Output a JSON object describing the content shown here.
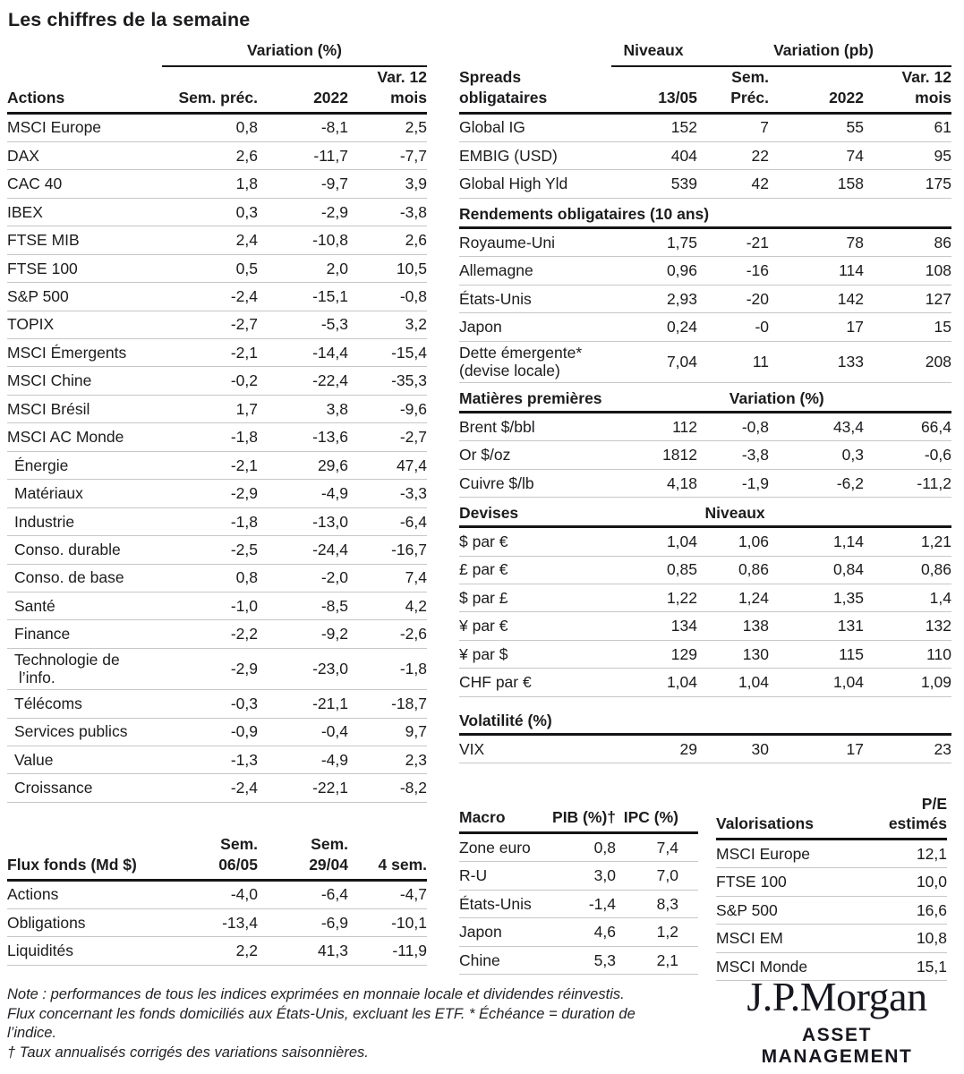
{
  "title": "Les chiffres de la semaine",
  "colors": {
    "text": "#1c1c1e",
    "rule": "#151517",
    "separator": "#c7c7c9",
    "background": "#ffffff"
  },
  "actions": {
    "group_label": "Variation (%)",
    "name_col": "Actions",
    "cols": [
      "Sem. préc.",
      "2022",
      "Var. 12\nmois"
    ],
    "rows": [
      {
        "label": "MSCI Europe",
        "c1": "0,8",
        "c2": "-8,1",
        "c3": "2,5"
      },
      {
        "label": "DAX",
        "c1": "2,6",
        "c2": "-11,7",
        "c3": "-7,7"
      },
      {
        "label": "CAC 40",
        "c1": "1,8",
        "c2": "-9,7",
        "c3": "3,9"
      },
      {
        "label": "IBEX",
        "c1": "0,3",
        "c2": "-2,9",
        "c3": "-3,8"
      },
      {
        "label": "FTSE MIB",
        "c1": "2,4",
        "c2": "-10,8",
        "c3": "2,6"
      },
      {
        "label": "FTSE 100",
        "c1": "0,5",
        "c2": "2,0",
        "c3": "10,5"
      },
      {
        "label": "S&P 500",
        "c1": "-2,4",
        "c2": "-15,1",
        "c3": "-0,8"
      },
      {
        "label": "TOPIX",
        "c1": "-2,7",
        "c2": "-5,3",
        "c3": "3,2"
      },
      {
        "label": "MSCI Émergents",
        "c1": "-2,1",
        "c2": "-14,4",
        "c3": "-15,4"
      },
      {
        "label": "MSCI Chine",
        "c1": "-0,2",
        "c2": "-22,4",
        "c3": "-35,3"
      },
      {
        "label": "MSCI Brésil",
        "c1": "1,7",
        "c2": "3,8",
        "c3": "-9,6"
      },
      {
        "label": "MSCI AC Monde",
        "c1": "-1,8",
        "c2": "-13,6",
        "c3": "-2,7"
      },
      {
        "label": "Énergie",
        "indent": true,
        "c1": "-2,1",
        "c2": "29,6",
        "c3": "47,4"
      },
      {
        "label": "Matériaux",
        "indent": true,
        "c1": "-2,9",
        "c2": "-4,9",
        "c3": "-3,3"
      },
      {
        "label": "Industrie",
        "indent": true,
        "c1": "-1,8",
        "c2": "-13,0",
        "c3": "-6,4"
      },
      {
        "label": "Conso. durable",
        "indent": true,
        "c1": "-2,5",
        "c2": "-24,4",
        "c3": "-16,7"
      },
      {
        "label": "Conso. de base",
        "indent": true,
        "c1": "0,8",
        "c2": "-2,0",
        "c3": "7,4"
      },
      {
        "label": "Santé",
        "indent": true,
        "c1": "-1,0",
        "c2": "-8,5",
        "c3": "4,2"
      },
      {
        "label": "Finance",
        "indent": true,
        "c1": "-2,2",
        "c2": "-9,2",
        "c3": "-2,6"
      },
      {
        "label": "Technologie de\n l’info.",
        "indent": true,
        "c1": "-2,9",
        "c2": "-23,0",
        "c3": "-1,8"
      },
      {
        "label": "Télécoms",
        "indent": true,
        "c1": "-0,3",
        "c2": "-21,1",
        "c3": "-18,7"
      },
      {
        "label": "Services publics",
        "indent": true,
        "c1": "-0,9",
        "c2": "-0,4",
        "c3": "9,7"
      },
      {
        "label": "Value",
        "indent": true,
        "c1": "-1,3",
        "c2": "-4,9",
        "c3": "2,3"
      },
      {
        "label": "Croissance",
        "indent": true,
        "c1": "-2,4",
        "c2": "-22,1",
        "c3": "-8,2"
      }
    ]
  },
  "spreads": {
    "group_niveaux": "Niveaux",
    "group_variation": "Variation (pb)",
    "name_col": "Spreads\nobligataires",
    "cols": [
      "13/05",
      "Sem.\nPréc.",
      "2022",
      "Var. 12\nmois"
    ],
    "rows": [
      {
        "label": "Global IG",
        "c1": "152",
        "c2": "7",
        "c3": "55",
        "c4": "61"
      },
      {
        "label": "EMBIG (USD)",
        "c1": "404",
        "c2": "22",
        "c3": "74",
        "c4": "95"
      },
      {
        "label": "Global High Yld",
        "c1": "539",
        "c2": "42",
        "c3": "158",
        "c4": "175"
      }
    ]
  },
  "rendements": {
    "title": "Rendements obligataires (10 ans)",
    "rows": [
      {
        "label": "Royaume-Uni",
        "c1": "1,75",
        "c2": "-21",
        "c3": "78",
        "c4": "86"
      },
      {
        "label": "Allemagne",
        "c1": "0,96",
        "c2": "-16",
        "c3": "114",
        "c4": "108"
      },
      {
        "label": "États-Unis",
        "c1": "2,93",
        "c2": "-20",
        "c3": "142",
        "c4": "127"
      },
      {
        "label": "Japon",
        "c1": "0,24",
        "c2": "-0",
        "c3": "17",
        "c4": "15"
      },
      {
        "label": "Dette émergente*\n(devise locale)",
        "c1": "7,04",
        "c2": "11",
        "c3": "133",
        "c4": "208"
      }
    ]
  },
  "matieres": {
    "title": "Matières premières",
    "sublabel": "Variation (%)",
    "rows": [
      {
        "label": "Brent $/bbl",
        "c1": "112",
        "c2": "-0,8",
        "c3": "43,4",
        "c4": "66,4"
      },
      {
        "label": "Or $/oz",
        "c1": "1812",
        "c2": "-3,8",
        "c3": "0,3",
        "c4": "-0,6"
      },
      {
        "label": "Cuivre $/lb",
        "c1": "4,18",
        "c2": "-1,9",
        "c3": "-6,2",
        "c4": "-11,2"
      }
    ]
  },
  "devises": {
    "title": "Devises",
    "sublabel": "Niveaux",
    "rows": [
      {
        "label": "$ par €",
        "c1": "1,04",
        "c2": "1,06",
        "c3": "1,14",
        "c4": "1,21"
      },
      {
        "label": "£ par €",
        "c1": "0,85",
        "c2": "0,86",
        "c3": "0,84",
        "c4": "0,86"
      },
      {
        "label": "$ par £",
        "c1": "1,22",
        "c2": "1,24",
        "c3": "1,35",
        "c4": "1,4"
      },
      {
        "label": "¥ par €",
        "c1": "134",
        "c2": "138",
        "c3": "131",
        "c4": "132"
      },
      {
        "label": "¥ par $",
        "c1": "129",
        "c2": "130",
        "c3": "115",
        "c4": "110"
      },
      {
        "label": "CHF par €",
        "c1": "1,04",
        "c2": "1,04",
        "c3": "1,04",
        "c4": "1,09"
      }
    ]
  },
  "volatilite": {
    "title": "Volatilité (%)",
    "rows": [
      {
        "label": "VIX",
        "c1": "29",
        "c2": "30",
        "c3": "17",
        "c4": "23"
      }
    ]
  },
  "flux": {
    "name_col": "Flux fonds (Md $)",
    "cols": [
      "Sem.\n06/05",
      "Sem.\n29/04",
      "4 sem."
    ],
    "rows": [
      {
        "label": "Actions",
        "c1": "-4,0",
        "c2": "-6,4",
        "c3": "-4,7"
      },
      {
        "label": "Obligations",
        "c1": "-13,4",
        "c2": "-6,9",
        "c3": "-10,1"
      },
      {
        "label": "Liquidités",
        "c1": "2,2",
        "c2": "41,3",
        "c3": "-11,9"
      }
    ]
  },
  "macro": {
    "name_col": "Macro",
    "cols": [
      "PIB (%)†",
      "IPC (%)"
    ],
    "rows": [
      {
        "label": "Zone euro",
        "c1": "0,8",
        "c2": "7,4"
      },
      {
        "label": "R-U",
        "c1": "3,0",
        "c2": "7,0"
      },
      {
        "label": "États-Unis",
        "c1": "-1,4",
        "c2": "8,3"
      },
      {
        "label": "Japon",
        "c1": "4,6",
        "c2": "1,2"
      },
      {
        "label": "Chine",
        "c1": "5,3",
        "c2": "2,1"
      }
    ]
  },
  "valorisations": {
    "name_col": "Valorisations",
    "cols": [
      "P/E\nestimés"
    ],
    "rows": [
      {
        "label": "MSCI Europe",
        "c1": "12,1"
      },
      {
        "label": "FTSE 100",
        "c1": "10,0"
      },
      {
        "label": "S&P 500",
        "c1": "16,6"
      },
      {
        "label": "MSCI EM",
        "c1": "10,8"
      },
      {
        "label": "MSCI Monde",
        "c1": "15,1"
      }
    ]
  },
  "note": {
    "lines": [
      "Note : performances de tous les indices exprimées en monnaie locale et dividendes réinvestis.",
      "Flux concernant les fonds domiciliés aux États-Unis, excluant les ETF. * Échéance = duration de",
      "l’indice.",
      "† Taux annualisés corrigés des variations saisonnières."
    ]
  },
  "logo": {
    "brand": "J.P.Morgan",
    "division": "ASSET MANAGEMENT"
  }
}
